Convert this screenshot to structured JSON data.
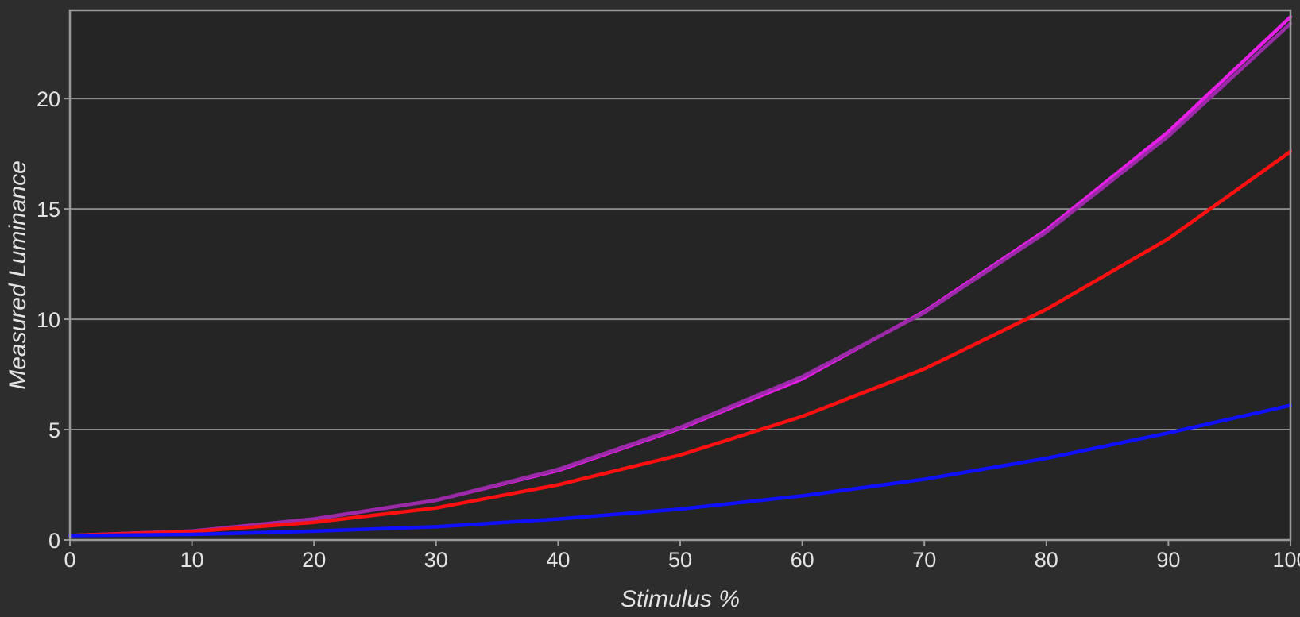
{
  "chart_data": {
    "type": "line",
    "title": "",
    "xlabel": "Stimulus %",
    "ylabel": "Measured Luminance",
    "xlim": [
      0,
      100
    ],
    "ylim": [
      0,
      24
    ],
    "x_ticks": [
      0,
      10,
      20,
      30,
      40,
      50,
      60,
      70,
      80,
      90,
      100
    ],
    "y_ticks": [
      0,
      5,
      10,
      15,
      20
    ],
    "grid": "horizontal",
    "x": [
      0,
      10,
      20,
      30,
      40,
      50,
      60,
      70,
      80,
      90,
      100
    ],
    "series": [
      {
        "color": "#e61ee6",
        "values": [
          0.2,
          0.4,
          0.95,
          1.8,
          3.15,
          5.05,
          7.3,
          10.35,
          14.05,
          18.5,
          23.7
        ]
      },
      {
        "color": "#9a2aa8",
        "values": [
          0.2,
          0.4,
          0.95,
          1.8,
          3.2,
          5.1,
          7.4,
          10.3,
          13.95,
          18.3,
          23.4
        ]
      },
      {
        "color": "#ff1010",
        "values": [
          0.2,
          0.38,
          0.8,
          1.45,
          2.5,
          3.85,
          5.6,
          7.75,
          10.45,
          13.65,
          17.6
        ]
      },
      {
        "color": "#1010ff",
        "values": [
          0.2,
          0.25,
          0.4,
          0.6,
          0.95,
          1.4,
          2.0,
          2.75,
          3.7,
          4.85,
          6.1
        ]
      }
    ]
  },
  "style": {
    "background": "#2d2d2d",
    "plot_background": "#252525",
    "grid_color": "#8a8a8a",
    "axis_color": "#9a9a9a"
  }
}
